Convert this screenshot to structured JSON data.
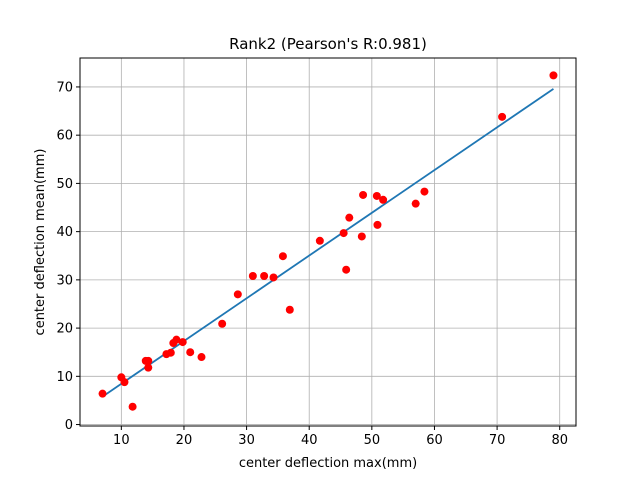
{
  "chart_data": {
    "type": "scatter",
    "title": "Rank2 (Pearson's R:0.981)",
    "xlabel": "center deflection max(mm)",
    "ylabel": "center deflection mean(mm)",
    "xlim": [
      3.4,
      82.6
    ],
    "ylim": [
      -0.3,
      76.0
    ],
    "xticks": [
      10,
      20,
      30,
      40,
      50,
      60,
      70,
      80
    ],
    "yticks": [
      0,
      10,
      20,
      30,
      40,
      50,
      60,
      70
    ],
    "grid": true,
    "point_color": "#ff0000",
    "line_color": "#1f77b4",
    "fit_line": {
      "x": [
        7.0,
        79.0
      ],
      "y": [
        5.8,
        69.6
      ]
    },
    "points": {
      "x": [
        7.0,
        10.0,
        10.5,
        11.8,
        13.9,
        14.3,
        14.3,
        17.2,
        17.9,
        18.3,
        18.8,
        19.8,
        21.0,
        22.8,
        26.1,
        28.6,
        31.0,
        32.8,
        34.3,
        35.8,
        36.9,
        41.7,
        45.5,
        45.9,
        46.4,
        48.4,
        48.6,
        50.8,
        50.9,
        51.8,
        57.0,
        58.4,
        70.8,
        79.0
      ],
      "y": [
        6.4,
        9.8,
        8.8,
        3.7,
        13.2,
        13.2,
        11.8,
        14.6,
        14.9,
        16.9,
        17.6,
        17.1,
        15.0,
        14.0,
        20.9,
        27.0,
        30.8,
        30.8,
        30.5,
        34.9,
        23.8,
        38.1,
        39.7,
        32.1,
        42.9,
        39.0,
        47.6,
        47.4,
        41.4,
        46.6,
        45.8,
        48.3,
        63.8,
        72.4
      ]
    }
  }
}
